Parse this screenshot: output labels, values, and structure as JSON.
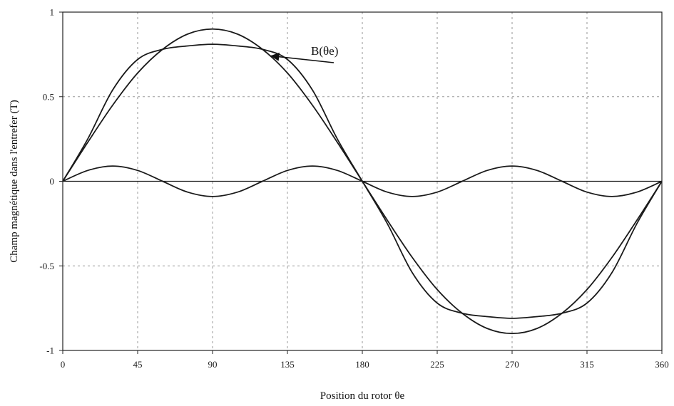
{
  "chart_data": {
    "type": "line",
    "title": "",
    "xlabel": "Position du rotor θe",
    "ylabel": "Champ magnétique dans l'entrefer (T)",
    "xlim": [
      0,
      360
    ],
    "ylim": [
      -1,
      1
    ],
    "xticks": [
      0,
      45,
      90,
      135,
      180,
      225,
      270,
      315,
      360
    ],
    "yticks": [
      1,
      0.5,
      0,
      -0.5,
      -1
    ],
    "xtick_labels": [
      "0",
      "45",
      "90",
      "135",
      "180",
      "225",
      "270",
      "315",
      "360"
    ],
    "ytick_labels": [
      "1",
      "0.5",
      "0",
      "-0.5",
      "-1"
    ],
    "grid": true,
    "x": [
      0,
      15,
      30,
      45,
      60,
      75,
      90,
      105,
      120,
      135,
      150,
      165,
      180,
      195,
      210,
      225,
      240,
      255,
      270,
      285,
      300,
      315,
      330,
      345,
      360
    ],
    "series": [
      {
        "values": [
          0,
          0.25,
          0.54,
          0.72,
          0.78,
          0.8,
          0.81,
          0.8,
          0.78,
          0.72,
          0.54,
          0.25,
          0,
          -0.25,
          -0.54,
          -0.72,
          -0.78,
          -0.8,
          -0.81,
          -0.8,
          -0.78,
          -0.72,
          -0.54,
          -0.25,
          0
        ]
      },
      {
        "values": [
          0,
          0.23,
          0.45,
          0.64,
          0.78,
          0.87,
          0.9,
          0.87,
          0.78,
          0.64,
          0.45,
          0.23,
          0,
          -0.23,
          -0.45,
          -0.64,
          -0.78,
          -0.87,
          -0.9,
          -0.87,
          -0.78,
          -0.64,
          -0.45,
          -0.23,
          0
        ]
      },
      {
        "values": [
          0,
          0.064,
          0.09,
          0.064,
          0,
          -0.064,
          -0.09,
          -0.064,
          0,
          0.064,
          0.09,
          0.064,
          0,
          -0.064,
          -0.09,
          -0.064,
          0,
          0.064,
          0.09,
          0.064,
          0,
          -0.064,
          -0.09,
          -0.064,
          0
        ]
      }
    ],
    "annotations": [
      {
        "text": "B(θe)",
        "points_to_x": 124,
        "points_to_y": 0.75
      }
    ]
  }
}
